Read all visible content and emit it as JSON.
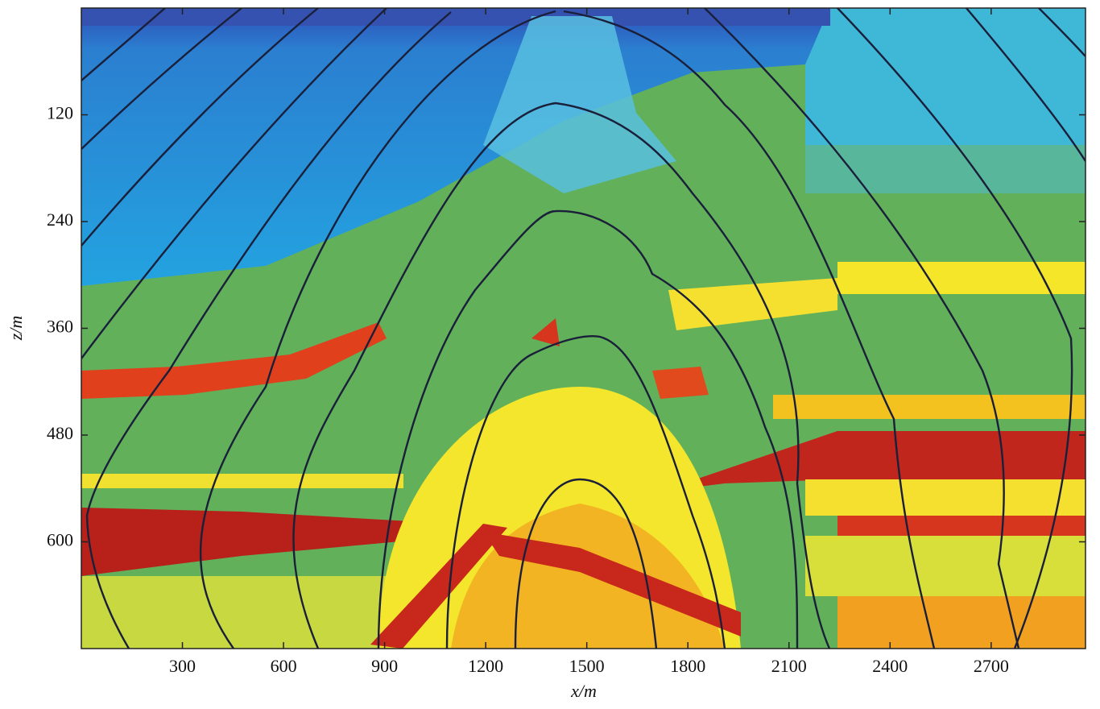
{
  "chart_data": {
    "type": "image",
    "xlabel": "x/m",
    "ylabel": "z/m",
    "xlim": [
      0,
      2980
    ],
    "ylim": [
      0,
      720
    ],
    "xticks": [
      300,
      600,
      900,
      1200,
      1500,
      1800,
      2100,
      2400,
      2700
    ],
    "yticks": [
      120,
      240,
      360,
      480,
      600
    ],
    "y_inverted": true
  }
}
